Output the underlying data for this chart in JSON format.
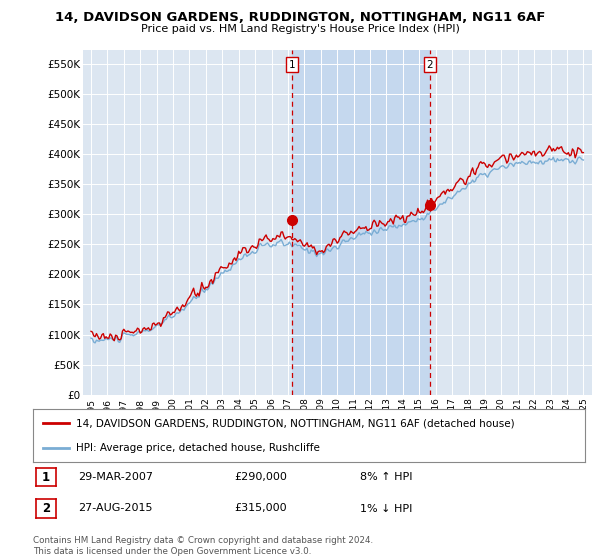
{
  "title": "14, DAVIDSON GARDENS, RUDDINGTON, NOTTINGHAM, NG11 6AF",
  "subtitle": "Price paid vs. HM Land Registry's House Price Index (HPI)",
  "ylabel_ticks": [
    "£0",
    "£50K",
    "£100K",
    "£150K",
    "£200K",
    "£250K",
    "£300K",
    "£350K",
    "£400K",
    "£450K",
    "£500K",
    "£550K"
  ],
  "yticks": [
    0,
    50000,
    100000,
    150000,
    200000,
    250000,
    300000,
    350000,
    400000,
    450000,
    500000,
    550000
  ],
  "legend_label_red": "14, DAVIDSON GARDENS, RUDDINGTON, NOTTINGHAM, NG11 6AF (detached house)",
  "legend_label_blue": "HPI: Average price, detached house, Rushcliffe",
  "footnote": "Contains HM Land Registry data © Crown copyright and database right 2024.\nThis data is licensed under the Open Government Licence v3.0.",
  "table_row1": [
    "1",
    "29-MAR-2007",
    "£290,000",
    "8% ↑ HPI"
  ],
  "table_row2": [
    "2",
    "27-AUG-2015",
    "£315,000",
    "1% ↓ HPI"
  ],
  "background_color": "#dce6f1",
  "shade_color": "#c5d8ee",
  "red_color": "#cc0000",
  "blue_color": "#7aadd4",
  "vline_color": "#cc0000",
  "grid_color": "#ffffff",
  "sale1_year": 2007.24,
  "sale1_price": 290,
  "sale2_year": 2015.65,
  "sale2_price": 315
}
